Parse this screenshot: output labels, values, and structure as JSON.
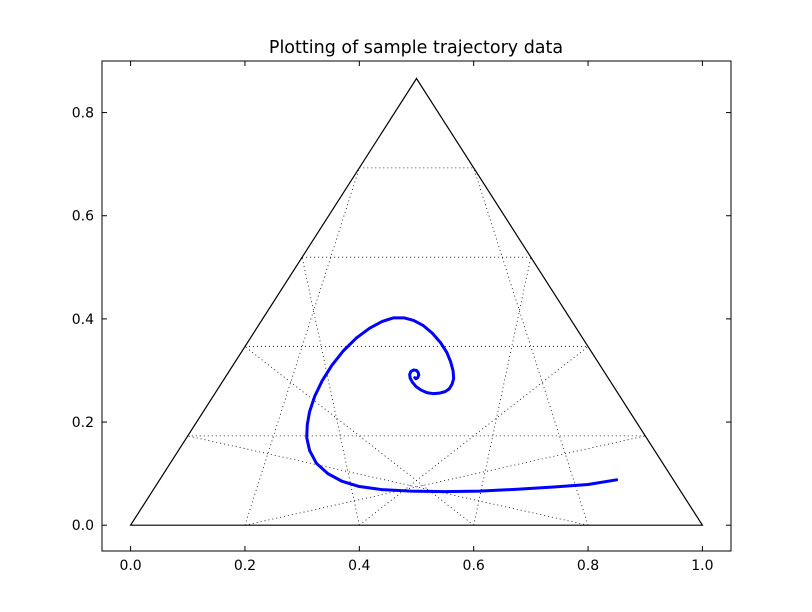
{
  "chart_data": {
    "type": "line",
    "title": "Plotting of sample trajectory data",
    "xlabel": "",
    "ylabel": "",
    "xlim": [
      -0.05,
      1.05
    ],
    "ylim": [
      -0.05,
      0.9
    ],
    "xticks": [
      0.0,
      0.2,
      0.4,
      0.6,
      0.8,
      1.0
    ],
    "xtick_labels": [
      "0.0",
      "0.2",
      "0.4",
      "0.6",
      "0.8",
      "1.0"
    ],
    "yticks": [
      0.0,
      0.2,
      0.4,
      0.6,
      0.8
    ],
    "ytick_labels": [
      "0.0",
      "0.2",
      "0.4",
      "0.6",
      "0.8"
    ],
    "grid": "dotted triangular gridlines inside simplex",
    "boundary": {
      "color": "#000000",
      "vertices": [
        [
          0.0,
          0.0
        ],
        [
          1.0,
          0.0
        ],
        [
          0.5,
          0.866
        ]
      ]
    },
    "gridlines": {
      "color": "#000000",
      "style": "dotted",
      "divisions": 5
    },
    "series": [
      {
        "color": "#0000ff",
        "x": [
          0.85,
          0.8,
          0.74,
          0.68,
          0.61,
          0.55,
          0.49,
          0.44,
          0.4,
          0.37,
          0.345,
          0.325,
          0.313,
          0.308,
          0.309,
          0.313,
          0.322,
          0.335,
          0.352,
          0.372,
          0.395,
          0.418,
          0.44,
          0.46,
          0.478,
          0.495,
          0.512,
          0.528,
          0.542,
          0.553,
          0.56,
          0.564,
          0.565,
          0.562,
          0.557,
          0.55,
          0.54,
          0.53,
          0.518,
          0.508,
          0.499,
          0.493,
          0.489,
          0.488,
          0.49,
          0.495,
          0.5,
          0.503,
          0.504,
          0.502,
          0.499,
          0.497
        ],
        "y": [
          0.088,
          0.079,
          0.074,
          0.07,
          0.066,
          0.065,
          0.066,
          0.069,
          0.075,
          0.085,
          0.1,
          0.12,
          0.145,
          0.17,
          0.195,
          0.22,
          0.25,
          0.28,
          0.31,
          0.338,
          0.363,
          0.382,
          0.395,
          0.402,
          0.402,
          0.397,
          0.387,
          0.372,
          0.354,
          0.335,
          0.316,
          0.299,
          0.284,
          0.273,
          0.264,
          0.259,
          0.256,
          0.255,
          0.257,
          0.262,
          0.269,
          0.277,
          0.285,
          0.292,
          0.298,
          0.301,
          0.3,
          0.296,
          0.291,
          0.286,
          0.284,
          0.286
        ]
      }
    ]
  }
}
